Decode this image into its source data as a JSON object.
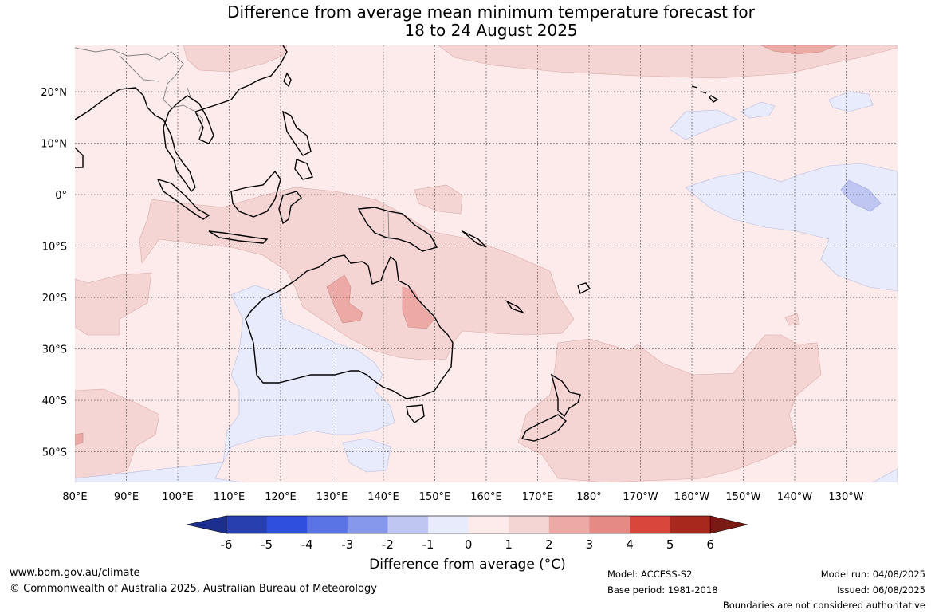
{
  "title_line1": "Difference from average mean minimum temperature forecast for",
  "title_line2": "18 to 24 August 2025",
  "colorbar": {
    "title": "Difference from average (°C)",
    "tick_labels": [
      "-6",
      "-5",
      "-4",
      "-3",
      "-2",
      "-1",
      "0",
      "1",
      "2",
      "3",
      "4",
      "5",
      "6"
    ],
    "colors": [
      "#1c2f8f",
      "#283fb0",
      "#2f4fdd",
      "#5a74e6",
      "#8598eb",
      "#bfc6f2",
      "#e8ebfb",
      "#fcebea",
      "#f5d5d4",
      "#eda9a6",
      "#e58a84",
      "#d9463b",
      "#a8281e",
      "#7a1a14"
    ]
  },
  "axes": {
    "lon_labels": [
      "80°E",
      "90°E",
      "100°E",
      "110°E",
      "120°E",
      "130°E",
      "140°E",
      "150°E",
      "160°E",
      "170°E",
      "180°",
      "170°W",
      "160°W",
      "150°W",
      "140°W",
      "130°W"
    ],
    "lat_labels": [
      "20°N",
      "10°N",
      "0°",
      "10°S",
      "20°S",
      "30°S",
      "40°S",
      "50°S"
    ]
  },
  "footer": {
    "website": "www.bom.gov.au/climate",
    "copyright": "© Commonwealth of Australia 2025, Australian Bureau of Meteorology",
    "model": "Model: ACCESS-S2",
    "base_period": "Base period: 1981-2018",
    "model_run": "Model run: 04/08/2025",
    "issued": "Issued: 06/08/2025",
    "disclaimer": "Boundaries are not considered authoritative"
  }
}
